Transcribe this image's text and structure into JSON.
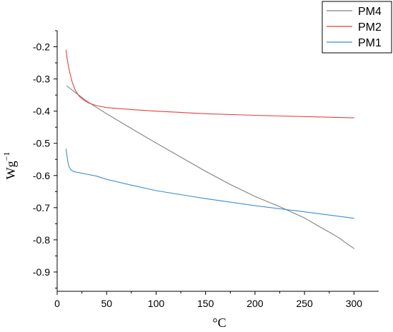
{
  "chart_data": {
    "type": "line",
    "title": "",
    "xlabel": "°C",
    "ylabel": "Wg",
    "ylabel_superscript": "−1",
    "xlim": [
      0,
      325
    ],
    "ylim": [
      -0.96,
      -0.15
    ],
    "xticks": [
      0,
      50,
      100,
      150,
      200,
      250,
      300
    ],
    "xtick_labels": [
      "0",
      "50",
      "100",
      "150",
      "200",
      "250",
      "300"
    ],
    "yticks": [
      -0.2,
      -0.3,
      -0.4,
      -0.5,
      -0.6,
      -0.7,
      -0.8,
      -0.9
    ],
    "ytick_labels": [
      "-0.2",
      "-0.3",
      "-0.4",
      "-0.5",
      "-0.6",
      "-0.7",
      "-0.8",
      "-0.9"
    ],
    "grid": false,
    "legend_position": "top-right",
    "series": [
      {
        "name": "PM4",
        "color": "#808080",
        "x": [
          10,
          20,
          30,
          40,
          50,
          75,
          100,
          125,
          150,
          175,
          200,
          225,
          250,
          265,
          275,
          285,
          292,
          300
        ],
        "y": [
          -0.322,
          -0.346,
          -0.369,
          -0.389,
          -0.408,
          -0.454,
          -0.499,
          -0.543,
          -0.587,
          -0.628,
          -0.665,
          -0.697,
          -0.732,
          -0.759,
          -0.776,
          -0.794,
          -0.81,
          -0.827
        ]
      },
      {
        "name": "PM2",
        "color": "#e8413c",
        "x": [
          9,
          10,
          12,
          15,
          18,
          22,
          27,
          32,
          40,
          50,
          75,
          100,
          150,
          200,
          250,
          300
        ],
        "y": [
          -0.21,
          -0.235,
          -0.27,
          -0.308,
          -0.333,
          -0.353,
          -0.366,
          -0.375,
          -0.383,
          -0.389,
          -0.395,
          -0.4,
          -0.408,
          -0.413,
          -0.417,
          -0.421
        ]
      },
      {
        "name": "PM1",
        "color": "#3a8fd6",
        "x": [
          9,
          10,
          11,
          12,
          14,
          17,
          20,
          25,
          30,
          40,
          50,
          75,
          100,
          150,
          200,
          250,
          300
        ],
        "y": [
          -0.518,
          -0.54,
          -0.56,
          -0.573,
          -0.583,
          -0.588,
          -0.59,
          -0.593,
          -0.596,
          -0.602,
          -0.612,
          -0.63,
          -0.647,
          -0.672,
          -0.694,
          -0.713,
          -0.733
        ]
      }
    ]
  }
}
